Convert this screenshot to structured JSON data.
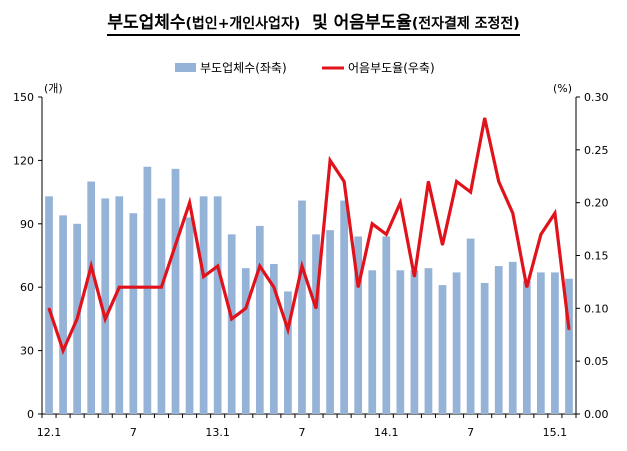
{
  "title": {
    "main": "부도업체수",
    "paren1": "(법인+개인사업자)",
    "mid": "및 어음부도율",
    "paren2": "(전자결제 조정전)"
  },
  "chart_data": {
    "type": "bar+line",
    "title": "부도업체수(법인+개인사업자) 및 어음부도율(전자결제 조정전)",
    "y_left_unit": "(개)",
    "y_right_unit": "(%)",
    "y_left_ticks": [
      "0",
      "30",
      "60",
      "90",
      "120",
      "150"
    ],
    "y_right_ticks": [
      "0.00",
      "0.05",
      "0.10",
      "0.15",
      "0.20",
      "0.25",
      "0.30"
    ],
    "y_left_lim": [
      0,
      150
    ],
    "y_right_lim": [
      0,
      0.3
    ],
    "x_tick_labels": [
      {
        "label": "12.1",
        "index": 0
      },
      {
        "label": "7",
        "index": 6
      },
      {
        "label": "13.1",
        "index": 12
      },
      {
        "label": "7",
        "index": 18
      },
      {
        "label": "14.1",
        "index": 24
      },
      {
        "label": "7",
        "index": 30
      },
      {
        "label": "15.1",
        "index": 36
      }
    ],
    "legend": {
      "position": "top-center"
    },
    "series": [
      {
        "name": "부도업체수(좌축)",
        "type": "bar",
        "axis": "left",
        "color": "#95b3d7",
        "values": [
          103,
          94,
          90,
          110,
          102,
          103,
          95,
          117,
          102,
          116,
          93,
          103,
          103,
          85,
          69,
          89,
          71,
          58,
          101,
          85,
          87,
          101,
          84,
          68,
          84,
          68,
          68,
          69,
          61,
          67,
          83,
          62,
          70,
          72,
          63,
          67,
          67,
          64
        ]
      },
      {
        "name": "어음부도율(우축)",
        "type": "line",
        "axis": "right",
        "color": "#e0121b",
        "values": [
          0.1,
          0.06,
          0.09,
          0.14,
          0.09,
          0.12,
          0.12,
          0.12,
          0.12,
          0.16,
          0.2,
          0.13,
          0.14,
          0.09,
          0.1,
          0.14,
          0.12,
          0.08,
          0.14,
          0.1,
          0.24,
          0.22,
          0.12,
          0.18,
          0.17,
          0.2,
          0.13,
          0.22,
          0.16,
          0.22,
          0.21,
          0.28,
          0.22,
          0.19,
          0.12,
          0.17,
          0.19,
          0.08
        ]
      }
    ]
  }
}
